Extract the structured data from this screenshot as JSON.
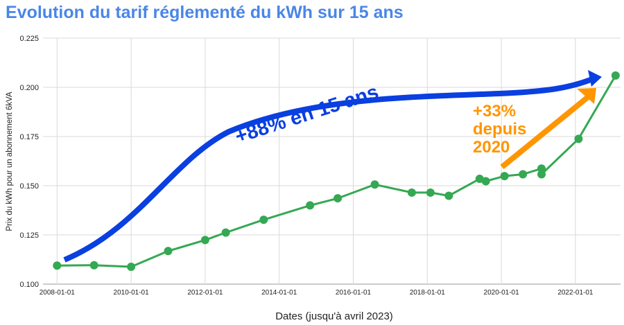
{
  "title": "Evolution du tarif réglementé du kWh sur 15 ans",
  "chart_data": {
    "type": "line",
    "title": "Evolution du tarif réglementé du kWh sur 15 ans",
    "xlabel": "Dates (jusqu'à avril 2023)",
    "ylabel": "Prix du kWh pour un abonnement 6kVA",
    "ylim": [
      0.1,
      0.225
    ],
    "yticks": [
      "0.100",
      "0.125",
      "0.150",
      "0.175",
      "0.200",
      "0.225"
    ],
    "xticks": [
      "2008-01-01",
      "2010-01-01",
      "2012-01-01",
      "2014-01-01",
      "2016-01-01",
      "2018-01-01",
      "2020-01-01",
      "2022-01-01"
    ],
    "grid": true,
    "series_color": "#34a853",
    "x": [
      "2008-01-01",
      "2009-01-01",
      "2010-01-01",
      "2011-01-01",
      "2012-01-01",
      "2012-07-23",
      "2013-08-01",
      "2014-11-01",
      "2015-08-01",
      "2016-08-01",
      "2017-08-01",
      "2018-02-01",
      "2018-08-01",
      "2019-06-01",
      "2019-08-01",
      "2020-02-01",
      "2020-08-01",
      "2021-02-01",
      "2021-02-01",
      "2022-02-01",
      "2023-02-01"
    ],
    "values": [
      0.1094,
      0.1096,
      0.1088,
      0.1168,
      0.1224,
      0.1262,
      0.1327,
      0.14,
      0.1436,
      0.1506,
      0.1465,
      0.1465,
      0.1449,
      0.1535,
      0.1523,
      0.1549,
      0.1558,
      0.1587,
      0.1558,
      0.1738,
      0.206
    ],
    "annotations": [
      {
        "text": "+88% en 15 ans",
        "color": "#0a3fe0"
      },
      {
        "text_lines": [
          "+33%",
          "depuis",
          "2020"
        ],
        "color": "#ff9500"
      }
    ]
  }
}
